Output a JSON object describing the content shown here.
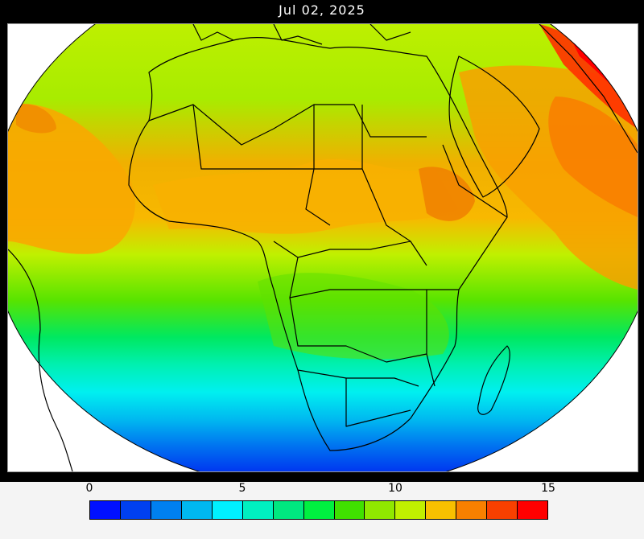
{
  "title": "Jul 02, 2025",
  "legend": {
    "ticks": [
      {
        "label": "0",
        "value": 0
      },
      {
        "label": "5",
        "value": 5
      },
      {
        "label": "10",
        "value": 10
      },
      {
        "label": "15",
        "value": 15
      }
    ],
    "range": [
      0,
      15
    ],
    "bins": [
      "#0010ff",
      "#0040f0",
      "#0080f0",
      "#00b8f0",
      "#00f0ff",
      "#00f0c0",
      "#00e880",
      "#00f040",
      "#40e000",
      "#90e800",
      "#c0f000",
      "#f8c000",
      "#f88000",
      "#f84000",
      "#ff0000"
    ]
  },
  "map": {
    "region": "Africa",
    "colors": {
      "ocean_south_deep": "#0040f0",
      "cyan": "#00f0ff",
      "teal": "#00f0c0",
      "green": "#00e880",
      "lime": "#90e800",
      "yellowgreen": "#c0f000",
      "orange": "#f8a000",
      "red": "#ff1800",
      "border": "#000000"
    }
  }
}
